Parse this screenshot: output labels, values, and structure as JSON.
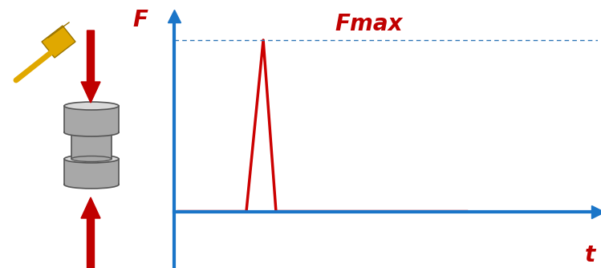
{
  "chart_data": {
    "type": "line",
    "x": [
      0.1,
      1.7,
      2.1,
      2.4,
      6.9
    ],
    "values": [
      0,
      0,
      10,
      0,
      0
    ],
    "color": "#cc0000",
    "xlabel": "t",
    "ylabel": "F",
    "annotation": "Fmax",
    "xlim": [
      0,
      10
    ],
    "ylim": [
      -3.3,
      11.4
    ],
    "xticks": [],
    "yticks": [],
    "tick_labels": false
  }
}
